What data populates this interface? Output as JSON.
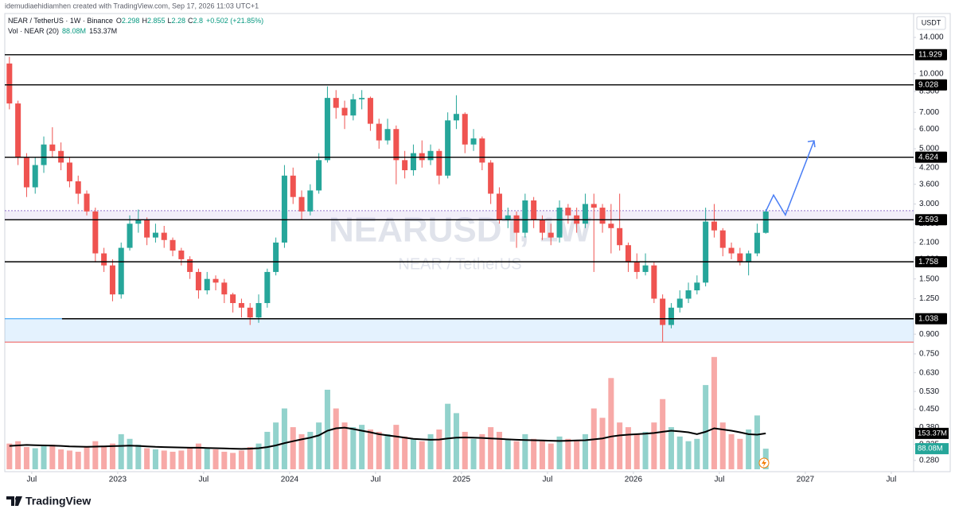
{
  "chart_data": {
    "type": "candlestick",
    "author_line": "idemudiaehidiamhen created with TradingView.com, Sep 17, 2026 11:03 UTC+1",
    "symbol_line": "NEAR / TetherUS · 1W · Binance",
    "ohlc_letters": [
      "O",
      "H",
      "L",
      "C"
    ],
    "change": "+0.502 (+21.85%)",
    "volume_line": "Vol · NEAR (20)",
    "currency": "USDT",
    "watermark": "NEARUSDT, 1W",
    "watermark_sub": "NEAR / TetherUS",
    "brand": "TradingView",
    "log_scale": true,
    "grid": false,
    "up_color": "#26a69a",
    "down_color": "#ef5350",
    "xlim": [
      2022.343,
      2027.63
    ],
    "xticks": [
      {
        "value": 2022.5,
        "label": "Jul"
      },
      2023,
      {
        "value": 2023.5,
        "label": "Jul"
      },
      2024,
      {
        "value": 2024.5,
        "label": "Jul"
      },
      2025,
      {
        "value": 2025.5,
        "label": "Jul"
      },
      2026,
      {
        "value": 2026.5,
        "label": "Jul"
      },
      2027,
      {
        "value": 2027.5,
        "label": "Jul"
      }
    ],
    "ylim": [
      0.258,
      15.87
    ],
    "yticks": [
      {
        "value": 14,
        "label": "14.000"
      },
      {
        "value": 10,
        "label": "10.000"
      },
      {
        "value": 8.5,
        "label": "8.500"
      },
      {
        "value": 7,
        "label": "7.000"
      },
      {
        "value": 6,
        "label": "6.000"
      },
      {
        "value": 5,
        "label": "5.000"
      },
      {
        "value": 4.2,
        "label": "4.200"
      },
      {
        "value": 3.6,
        "label": "3.600"
      },
      {
        "value": 3,
        "label": "3.000"
      },
      {
        "value": 2.5,
        "label": "2.500"
      },
      {
        "value": 2.1,
        "label": "2.100"
      },
      {
        "value": 1.8,
        "label": "1.800"
      },
      {
        "value": 1.5,
        "label": "1.500"
      },
      {
        "value": 1.25,
        "label": "1.250"
      },
      {
        "value": 0.9,
        "label": "0.900"
      },
      {
        "value": 0.75,
        "label": "0.750"
      },
      {
        "value": 0.63,
        "label": "0.630"
      },
      {
        "value": 0.53,
        "label": "0.530"
      },
      {
        "value": 0.45,
        "label": "0.450"
      },
      {
        "value": 0.38,
        "label": "0.380"
      },
      {
        "value": 0.325,
        "label": "0.325"
      },
      {
        "value": 0.28,
        "label": "0.280"
      }
    ],
    "x": [
      2022.37,
      2022.42,
      2022.47,
      2022.52,
      2022.57,
      2022.62,
      2022.67,
      2022.72,
      2022.77,
      2022.82,
      2022.87,
      2022.92,
      2022.97,
      2023.02,
      2023.07,
      2023.12,
      2023.17,
      2023.22,
      2023.27,
      2023.32,
      2023.37,
      2023.42,
      2023.47,
      2023.52,
      2023.57,
      2023.62,
      2023.67,
      2023.72,
      2023.77,
      2023.82,
      2023.87,
      2023.92,
      2023.97,
      2024.02,
      2024.07,
      2024.12,
      2024.17,
      2024.22,
      2024.27,
      2024.32,
      2024.37,
      2024.42,
      2024.47,
      2024.52,
      2024.57,
      2024.62,
      2024.67,
      2024.72,
      2024.77,
      2024.82,
      2024.87,
      2024.92,
      2024.97,
      2025.02,
      2025.07,
      2025.12,
      2025.17,
      2025.22,
      2025.27,
      2025.32,
      2025.37,
      2025.42,
      2025.47,
      2025.52,
      2025.57,
      2025.62,
      2025.67,
      2025.72,
      2025.77,
      2025.82,
      2025.87,
      2025.92,
      2025.97,
      2026.02,
      2026.07,
      2026.12,
      2026.17,
      2026.22,
      2026.27,
      2026.32,
      2026.37,
      2026.42,
      2026.47,
      2026.52,
      2026.57,
      2026.62,
      2026.67,
      2026.72,
      2026.77
    ],
    "ohlc": [
      [
        11.0,
        11.7,
        7.2,
        7.6
      ],
      [
        7.6,
        7.8,
        4.3,
        4.6
      ],
      [
        4.6,
        4.8,
        3.2,
        3.5
      ],
      [
        3.5,
        4.6,
        3.3,
        4.3
      ],
      [
        4.3,
        5.6,
        4.0,
        5.2
      ],
      [
        5.2,
        6.1,
        4.6,
        4.9
      ],
      [
        4.9,
        5.3,
        4.1,
        4.4
      ],
      [
        4.4,
        4.6,
        3.5,
        3.7
      ],
      [
        3.7,
        3.9,
        3.0,
        3.3
      ],
      [
        3.3,
        3.4,
        2.7,
        2.8
      ],
      [
        2.8,
        2.9,
        1.75,
        1.9
      ],
      [
        1.9,
        2.0,
        1.6,
        1.7
      ],
      [
        1.7,
        1.8,
        1.22,
        1.3
      ],
      [
        1.3,
        2.1,
        1.25,
        2.0
      ],
      [
        2.0,
        2.7,
        1.95,
        2.5
      ],
      [
        2.5,
        2.85,
        2.3,
        2.6
      ],
      [
        2.6,
        2.65,
        2.05,
        2.2
      ],
      [
        2.2,
        2.5,
        2.1,
        2.3
      ],
      [
        2.3,
        2.45,
        2.0,
        2.15
      ],
      [
        2.15,
        2.2,
        1.85,
        1.95
      ],
      [
        1.95,
        2.0,
        1.7,
        1.8
      ],
      [
        1.8,
        1.85,
        1.5,
        1.6
      ],
      [
        1.6,
        1.65,
        1.25,
        1.35
      ],
      [
        1.35,
        1.6,
        1.3,
        1.5
      ],
      [
        1.5,
        1.55,
        1.35,
        1.45
      ],
      [
        1.45,
        1.5,
        1.2,
        1.3
      ],
      [
        1.3,
        1.32,
        1.1,
        1.2
      ],
      [
        1.2,
        1.25,
        1.05,
        1.15
      ],
      [
        1.15,
        1.2,
        0.98,
        1.05
      ],
      [
        1.05,
        1.3,
        1.0,
        1.2
      ],
      [
        1.2,
        1.65,
        1.15,
        1.6
      ],
      [
        1.6,
        2.2,
        1.55,
        2.1
      ],
      [
        2.1,
        4.3,
        2.0,
        3.9
      ],
      [
        3.9,
        4.2,
        3.0,
        3.2
      ],
      [
        3.2,
        3.4,
        2.6,
        2.8
      ],
      [
        2.8,
        3.6,
        2.7,
        3.4
      ],
      [
        3.4,
        4.8,
        3.3,
        4.5
      ],
      [
        4.5,
        8.9,
        4.4,
        8.0
      ],
      [
        8.0,
        8.6,
        6.6,
        7.3
      ],
      [
        7.3,
        7.8,
        6.0,
        6.8
      ],
      [
        6.8,
        8.3,
        6.5,
        7.9
      ],
      [
        7.9,
        8.6,
        7.2,
        8.0
      ],
      [
        8.0,
        8.1,
        5.9,
        6.3
      ],
      [
        6.3,
        6.6,
        5.0,
        5.4
      ],
      [
        5.4,
        6.6,
        5.2,
        6.0
      ],
      [
        6.0,
        6.2,
        3.6,
        4.5
      ],
      [
        4.5,
        4.9,
        3.8,
        4.1
      ],
      [
        4.1,
        5.2,
        3.9,
        4.8
      ],
      [
        4.8,
        5.4,
        4.2,
        4.5
      ],
      [
        4.5,
        5.2,
        4.3,
        4.9
      ],
      [
        4.9,
        5.0,
        3.6,
        3.9
      ],
      [
        3.9,
        7.0,
        3.8,
        6.5
      ],
      [
        6.5,
        8.2,
        6.0,
        6.9
      ],
      [
        6.9,
        7.0,
        4.8,
        5.2
      ],
      [
        5.2,
        6.0,
        4.9,
        5.5
      ],
      [
        5.5,
        5.6,
        4.1,
        4.4
      ],
      [
        4.4,
        4.5,
        3.0,
        3.3
      ],
      [
        3.3,
        3.5,
        2.5,
        2.6
      ],
      [
        2.6,
        2.9,
        2.4,
        2.7
      ],
      [
        2.7,
        2.8,
        2.0,
        2.3
      ],
      [
        2.3,
        3.3,
        2.2,
        3.1
      ],
      [
        3.1,
        3.2,
        2.4,
        2.6
      ],
      [
        2.6,
        2.7,
        2.15,
        2.3
      ],
      [
        2.3,
        2.5,
        2.05,
        2.2
      ],
      [
        2.2,
        3.1,
        2.1,
        2.9
      ],
      [
        2.9,
        3.0,
        2.5,
        2.7
      ],
      [
        2.7,
        2.9,
        2.3,
        2.5
      ],
      [
        2.5,
        3.3,
        2.4,
        3.0
      ],
      [
        3.0,
        3.3,
        1.6,
        2.9
      ],
      [
        2.9,
        3.0,
        2.3,
        2.5
      ],
      [
        2.5,
        3.0,
        1.9,
        2.4
      ],
      [
        2.4,
        3.3,
        1.95,
        2.05
      ],
      [
        2.05,
        2.1,
        1.6,
        1.75
      ],
      [
        1.75,
        1.9,
        1.5,
        1.6
      ],
      [
        1.6,
        1.9,
        1.55,
        1.7
      ],
      [
        1.7,
        1.75,
        1.2,
        1.25
      ],
      [
        1.25,
        1.3,
        0.84,
        0.98
      ],
      [
        0.98,
        1.2,
        0.95,
        1.15
      ],
      [
        1.15,
        1.35,
        1.1,
        1.25
      ],
      [
        1.25,
        1.45,
        1.2,
        1.35
      ],
      [
        1.35,
        1.55,
        1.3,
        1.45
      ],
      [
        1.45,
        2.9,
        1.4,
        2.55
      ],
      [
        2.55,
        3.0,
        2.2,
        2.35
      ],
      [
        2.35,
        2.4,
        1.85,
        2.0
      ],
      [
        2.0,
        2.1,
        1.8,
        1.9
      ],
      [
        1.9,
        2.0,
        1.7,
        1.75
      ],
      [
        1.75,
        1.95,
        1.55,
        1.9
      ],
      [
        1.9,
        2.5,
        1.85,
        2.298
      ],
      [
        2.298,
        2.855,
        2.28,
        2.8
      ]
    ],
    "volume": {
      "vlim": [
        0,
        510
      ],
      "last_label": "88.08M",
      "values": [
        110,
        120,
        95,
        90,
        100,
        105,
        85,
        80,
        75,
        95,
        120,
        100,
        110,
        150,
        130,
        105,
        90,
        85,
        80,
        75,
        80,
        95,
        110,
        90,
        85,
        75,
        70,
        80,
        95,
        110,
        160,
        200,
        260,
        180,
        150,
        160,
        200,
        340,
        260,
        200,
        180,
        190,
        170,
        160,
        150,
        190,
        140,
        130,
        120,
        150,
        170,
        280,
        240,
        160,
        130,
        150,
        180,
        160,
        130,
        120,
        150,
        130,
        120,
        110,
        140,
        130,
        120,
        150,
        260,
        220,
        390,
        200,
        180,
        150,
        160,
        200,
        300,
        180,
        140,
        120,
        130,
        360,
        480,
        200,
        150,
        130,
        170,
        230,
        88.08
      ]
    },
    "volume_ma": {
      "color": "#000000",
      "last_label": "153.37M",
      "values": [
        100,
        102,
        104,
        103,
        102,
        101,
        100,
        98,
        97,
        96,
        97,
        98,
        99,
        100,
        101,
        100,
        98,
        96,
        95,
        94,
        93,
        92,
        92,
        91,
        90,
        89,
        88,
        87,
        88,
        90,
        95,
        102,
        112,
        120,
        128,
        135,
        145,
        165,
        175,
        178,
        172,
        165,
        158,
        150,
        145,
        140,
        135,
        130,
        128,
        126,
        127,
        132,
        135,
        136,
        135,
        134,
        132,
        130,
        128,
        126,
        125,
        124,
        123,
        122,
        121,
        122,
        123,
        124,
        128,
        132,
        140,
        145,
        148,
        150,
        152,
        155,
        160,
        165,
        162,
        158,
        150,
        160,
        175,
        170,
        165,
        158,
        150,
        148,
        153.37
      ]
    },
    "levels": [
      11.929,
      9.028,
      4.624,
      2.593,
      1.758,
      1.038
    ],
    "zones": [
      {
        "from": 2.593,
        "to": 2.82,
        "color": "#9575cd"
      },
      {
        "from": 0.836,
        "to": 1.038,
        "color": "#2196f3"
      }
    ],
    "projection": {
      "color": "#4a7ef5",
      "x": [
        2026.77,
        2026.815,
        2026.884,
        2027.051
      ],
      "values": [
        2.8,
        3.26,
        2.71,
        5.38
      ]
    }
  }
}
